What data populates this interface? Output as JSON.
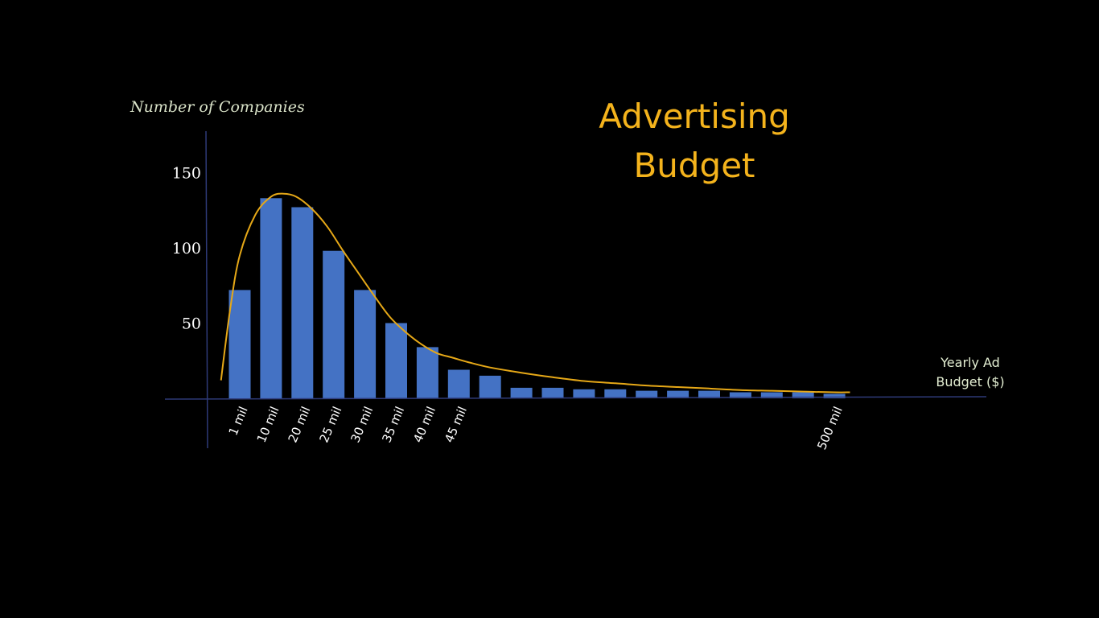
{
  "chart_data": {
    "type": "bar",
    "title_lines": [
      "Advertising",
      "Budget"
    ],
    "ylabel": "Number of Companies",
    "xlabel_lines": [
      "Yearly Ad",
      "Budget ($)"
    ],
    "yticks": [
      50,
      100,
      150
    ],
    "ylim": [
      0,
      175
    ],
    "x_tick_labels": [
      {
        "index": 0,
        "label": "1 mil"
      },
      {
        "index": 1,
        "label": "10 mil"
      },
      {
        "index": 2,
        "label": "20 mil"
      },
      {
        "index": 3,
        "label": "25 mil"
      },
      {
        "index": 4,
        "label": "30 mil"
      },
      {
        "index": 5,
        "label": "35 mil"
      },
      {
        "index": 6,
        "label": "40 mil"
      },
      {
        "index": 7,
        "label": "45 mil"
      },
      {
        "index": 19,
        "label": "500 mil"
      }
    ],
    "values": [
      72,
      133,
      127,
      98,
      72,
      50,
      34,
      19,
      15,
      7,
      7,
      6,
      6,
      5,
      5,
      5,
      4,
      4,
      4,
      3
    ],
    "curve": {
      "x": [
        -0.6,
        -0.3,
        0,
        0.5,
        1.0,
        1.4,
        1.8,
        2.3,
        2.8,
        3.3,
        3.8,
        4.3,
        4.8,
        5.3,
        5.8,
        6.3,
        6.8,
        7.3,
        8.0,
        9.0,
        10.0,
        11.0,
        12.0,
        13.0,
        14.0,
        15.0,
        16.0,
        17.0,
        18.0,
        19.0,
        19.5
      ],
      "y": [
        12,
        60,
        95,
        122,
        134,
        136,
        134,
        126,
        114,
        98,
        83,
        68,
        54,
        44,
        36,
        30,
        27,
        24,
        20.5,
        17,
        14,
        11.5,
        10,
        8.5,
        7.5,
        6.5,
        5.5,
        5,
        4.5,
        4,
        4
      ]
    }
  },
  "colors": {
    "background": "#000000",
    "bar": "#4472c4",
    "curve": "#e6a817",
    "axis": "#2e3a78",
    "title": "#f4b31c",
    "ylabel": "#d9e2c8",
    "xlabel": "#e3eed2",
    "tick_text": "#ffffff"
  }
}
